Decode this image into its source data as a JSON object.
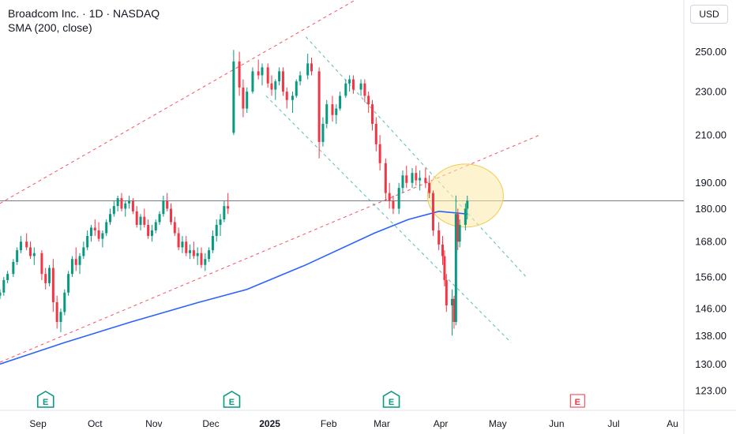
{
  "legend": {
    "symbol_line": "Broadcom Inc. · 1D · NASDAQ",
    "indicator_line": "SMA (200, close)"
  },
  "currency_button": "USD",
  "colors": {
    "up": "#089981",
    "down": "#f23645",
    "sma": "#2962ff",
    "channel_red": "#f23645",
    "channel_green": "#26a69a",
    "highlight_fill": "#fde9a8",
    "highlight_stroke": "#f2c94c",
    "hline": "#787b86"
  },
  "chart_data": {
    "type": "candlestick",
    "title": "Broadcom Inc. · 1D · NASDAQ",
    "y_axis": {
      "ticks": [
        250.0,
        230.0,
        210.0,
        190.0,
        180.0,
        168.0,
        156.0,
        146.0,
        138.0,
        130.0,
        123.0
      ],
      "scale": "log",
      "range": [
        118,
        275
      ]
    },
    "x_axis": {
      "ticks": [
        {
          "label": "Sep",
          "date": "2024-09-01",
          "bold": false
        },
        {
          "label": "Oct",
          "date": "2024-10-01",
          "bold": false
        },
        {
          "label": "Nov",
          "date": "2024-11-01",
          "bold": false
        },
        {
          "label": "Dec",
          "date": "2024-12-01",
          "bold": false
        },
        {
          "label": "2025",
          "date": "2025-01-01",
          "bold": true
        },
        {
          "label": "Feb",
          "date": "2025-02-01",
          "bold": false
        },
        {
          "label": "Mar",
          "date": "2025-03-01",
          "bold": false
        },
        {
          "label": "Apr",
          "date": "2025-04-01",
          "bold": false
        },
        {
          "label": "May",
          "date": "2025-05-01",
          "bold": false
        },
        {
          "label": "Jun",
          "date": "2025-06-01",
          "bold": false
        },
        {
          "label": "Jul",
          "date": "2025-07-01",
          "bold": false
        },
        {
          "label": "Au",
          "date": "2025-08-01",
          "bold": false
        }
      ],
      "range": [
        "2024-08-12",
        "2025-08-07"
      ]
    },
    "candles": [
      [
        "2024-08-12",
        150,
        152,
        149,
        151
      ],
      [
        "2024-08-14",
        151,
        156,
        150,
        155
      ],
      [
        "2024-08-16",
        155,
        158,
        154,
        157
      ],
      [
        "2024-08-19",
        157,
        162,
        156,
        161
      ],
      [
        "2024-08-21",
        161,
        166,
        160,
        165
      ],
      [
        "2024-08-23",
        165,
        170,
        164,
        168
      ],
      [
        "2024-08-26",
        168,
        171,
        165,
        166
      ],
      [
        "2024-08-28",
        166,
        168,
        162,
        163
      ],
      [
        "2024-08-30",
        163,
        166,
        160,
        164
      ],
      [
        "2024-09-03",
        164,
        165,
        155,
        157
      ],
      [
        "2024-09-05",
        157,
        159,
        152,
        154
      ],
      [
        "2024-09-07",
        154,
        160,
        153,
        159
      ],
      [
        "2024-09-09",
        159,
        162,
        145,
        148
      ],
      [
        "2024-09-11",
        148,
        150,
        140,
        142
      ],
      [
        "2024-09-13",
        142,
        146,
        139,
        145
      ],
      [
        "2024-09-15",
        145,
        152,
        144,
        151
      ],
      [
        "2024-09-17",
        151,
        158,
        150,
        157
      ],
      [
        "2024-09-19",
        157,
        163,
        156,
        162
      ],
      [
        "2024-09-21",
        162,
        166,
        158,
        160
      ],
      [
        "2024-09-23",
        160,
        164,
        157,
        163
      ],
      [
        "2024-09-25",
        163,
        168,
        162,
        166
      ],
      [
        "2024-09-27",
        166,
        172,
        165,
        170
      ],
      [
        "2024-09-29",
        170,
        174,
        168,
        173
      ],
      [
        "2024-10-01",
        173,
        176,
        170,
        172
      ],
      [
        "2024-10-03",
        172,
        175,
        168,
        169
      ],
      [
        "2024-10-05",
        169,
        172,
        166,
        171
      ],
      [
        "2024-10-07",
        171,
        176,
        170,
        175
      ],
      [
        "2024-10-09",
        175,
        180,
        174,
        178
      ],
      [
        "2024-10-11",
        178,
        183,
        177,
        181
      ],
      [
        "2024-10-13",
        181,
        185,
        179,
        184
      ],
      [
        "2024-10-15",
        184,
        186,
        179,
        180
      ],
      [
        "2024-10-17",
        180,
        183,
        177,
        182
      ],
      [
        "2024-10-19",
        182,
        185,
        180,
        183
      ],
      [
        "2024-10-21",
        183,
        184,
        178,
        179
      ],
      [
        "2024-10-23",
        179,
        181,
        173,
        174
      ],
      [
        "2024-10-25",
        174,
        178,
        172,
        177
      ],
      [
        "2024-10-27",
        177,
        180,
        173,
        174
      ],
      [
        "2024-10-29",
        174,
        176,
        169,
        170
      ],
      [
        "2024-10-31",
        170,
        174,
        168,
        172
      ],
      [
        "2024-11-02",
        172,
        176,
        171,
        175
      ],
      [
        "2024-11-04",
        175,
        179,
        174,
        178
      ],
      [
        "2024-11-06",
        178,
        185,
        177,
        183
      ],
      [
        "2024-11-08",
        183,
        186,
        179,
        180
      ],
      [
        "2024-11-10",
        180,
        182,
        174,
        175
      ],
      [
        "2024-11-12",
        175,
        177,
        170,
        171
      ],
      [
        "2024-11-14",
        171,
        173,
        165,
        166
      ],
      [
        "2024-11-16",
        166,
        170,
        164,
        168
      ],
      [
        "2024-11-18",
        168,
        170,
        163,
        164
      ],
      [
        "2024-11-20",
        164,
        167,
        162,
        165
      ],
      [
        "2024-11-22",
        165,
        168,
        162,
        163
      ],
      [
        "2024-11-24",
        163,
        166,
        160,
        164
      ],
      [
        "2024-11-26",
        164,
        166,
        159,
        160
      ],
      [
        "2024-11-28",
        160,
        164,
        158,
        162
      ],
      [
        "2024-11-30",
        162,
        166,
        161,
        165
      ],
      [
        "2024-12-02",
        165,
        172,
        164,
        170
      ],
      [
        "2024-12-04",
        170,
        176,
        168,
        174
      ],
      [
        "2024-12-06",
        174,
        178,
        170,
        176
      ],
      [
        "2024-12-08",
        176,
        183,
        175,
        181
      ],
      [
        "2024-12-10",
        181,
        186,
        178,
        180
      ],
      [
        "2024-12-13",
        211,
        251,
        210,
        245
      ],
      [
        "2024-12-16",
        245,
        250,
        228,
        232
      ],
      [
        "2024-12-18",
        232,
        236,
        218,
        222
      ],
      [
        "2024-12-20",
        222,
        232,
        220,
        230
      ],
      [
        "2024-12-23",
        230,
        242,
        229,
        240
      ],
      [
        "2024-12-26",
        240,
        246,
        236,
        238
      ],
      [
        "2024-12-28",
        238,
        244,
        233,
        242
      ],
      [
        "2024-12-31",
        242,
        244,
        232,
        234
      ],
      [
        "2025-01-02",
        234,
        238,
        228,
        231
      ],
      [
        "2025-01-04",
        231,
        236,
        226,
        235
      ],
      [
        "2025-01-06",
        235,
        242,
        233,
        240
      ],
      [
        "2025-01-08",
        240,
        242,
        228,
        230
      ],
      [
        "2025-01-10",
        230,
        232,
        222,
        226
      ],
      [
        "2025-01-13",
        226,
        230,
        220,
        228
      ],
      [
        "2025-01-15",
        228,
        236,
        227,
        235
      ],
      [
        "2025-01-17",
        235,
        240,
        233,
        238
      ],
      [
        "2025-01-21",
        238,
        249,
        236,
        244
      ],
      [
        "2025-01-23",
        244,
        247,
        238,
        240
      ],
      [
        "2025-01-27",
        240,
        242,
        200,
        207
      ],
      [
        "2025-01-29",
        207,
        218,
        205,
        215
      ],
      [
        "2025-01-31",
        215,
        226,
        213,
        224
      ],
      [
        "2025-02-03",
        224,
        228,
        216,
        219
      ],
      [
        "2025-02-05",
        219,
        224,
        215,
        222
      ],
      [
        "2025-02-07",
        222,
        230,
        221,
        228
      ],
      [
        "2025-02-10",
        228,
        236,
        227,
        234
      ],
      [
        "2025-02-12",
        234,
        238,
        230,
        236
      ],
      [
        "2025-02-14",
        236,
        238,
        229,
        231
      ],
      [
        "2025-02-18",
        231,
        236,
        228,
        234
      ],
      [
        "2025-02-20",
        234,
        236,
        225,
        228
      ],
      [
        "2025-02-22",
        228,
        230,
        220,
        224
      ],
      [
        "2025-02-24",
        224,
        226,
        212,
        215
      ],
      [
        "2025-02-26",
        215,
        218,
        203,
        206
      ],
      [
        "2025-02-28",
        206,
        210,
        195,
        198
      ],
      [
        "2025-03-03",
        198,
        200,
        183,
        186
      ],
      [
        "2025-03-05",
        186,
        190,
        180,
        183
      ],
      [
        "2025-03-07",
        183,
        185,
        178,
        180
      ],
      [
        "2025-03-10",
        180,
        190,
        178,
        188
      ],
      [
        "2025-03-12",
        188,
        195,
        186,
        193
      ],
      [
        "2025-03-14",
        193,
        197,
        188,
        190
      ],
      [
        "2025-03-17",
        190,
        196,
        188,
        194
      ],
      [
        "2025-03-19",
        194,
        197,
        189,
        191
      ],
      [
        "2025-03-21",
        191,
        195,
        187,
        192
      ],
      [
        "2025-03-24",
        192,
        196,
        188,
        190
      ],
      [
        "2025-03-26",
        190,
        193,
        184,
        186
      ],
      [
        "2025-03-28",
        186,
        187,
        170,
        172
      ],
      [
        "2025-03-31",
        172,
        175,
        165,
        167
      ],
      [
        "2025-04-02",
        167,
        170,
        160,
        163
      ],
      [
        "2025-04-03",
        163,
        165,
        153,
        155
      ],
      [
        "2025-04-04",
        155,
        157,
        145,
        147
      ],
      [
        "2025-04-07",
        147,
        152,
        138,
        149
      ],
      [
        "2025-04-08",
        149,
        150,
        140,
        142
      ],
      [
        "2025-04-09",
        142,
        185,
        141,
        178
      ],
      [
        "2025-04-10",
        178,
        180,
        165,
        168
      ],
      [
        "2025-04-11",
        168,
        176,
        166,
        174
      ],
      [
        "2025-04-14",
        174,
        182,
        172,
        180
      ],
      [
        "2025-04-15",
        180,
        185,
        176,
        183
      ]
    ],
    "sma200": [
      [
        "2024-08-12",
        130
      ],
      [
        "2024-09-15",
        136
      ],
      [
        "2024-10-20",
        142
      ],
      [
        "2024-11-25",
        148
      ],
      [
        "2024-12-20",
        152
      ],
      [
        "2025-01-20",
        160
      ],
      [
        "2025-02-25",
        171
      ],
      [
        "2025-03-15",
        176
      ],
      [
        "2025-03-31",
        179
      ],
      [
        "2025-04-15",
        178
      ]
    ],
    "channels": [
      {
        "color": "red",
        "style": "dashed",
        "points": [
          [
            "2024-08-12",
            182
          ],
          [
            "2025-03-06",
            291
          ]
        ]
      },
      {
        "color": "red",
        "style": "dashed",
        "points": [
          [
            "2024-08-12",
            130.5
          ],
          [
            "2025-05-23",
            210
          ]
        ]
      },
      {
        "color": "green",
        "style": "dashed",
        "points": [
          [
            "2025-01-20",
            258
          ],
          [
            "2025-05-16",
            156
          ]
        ]
      },
      {
        "color": "green",
        "style": "dashed",
        "points": [
          [
            "2024-12-30",
            228
          ],
          [
            "2025-05-08",
            136
          ]
        ]
      }
    ],
    "horizontal_line": 183,
    "highlight": {
      "center": [
        "2025-04-14",
        185
      ],
      "shape": "ellipse"
    },
    "earnings_markers": [
      {
        "date": "2024-09-05",
        "label": "E",
        "state": "reported"
      },
      {
        "date": "2024-12-12",
        "label": "E",
        "state": "reported"
      },
      {
        "date": "2025-03-06",
        "label": "E",
        "state": "reported"
      },
      {
        "date": "2025-06-12",
        "label": "E",
        "state": "upcoming"
      }
    ]
  }
}
